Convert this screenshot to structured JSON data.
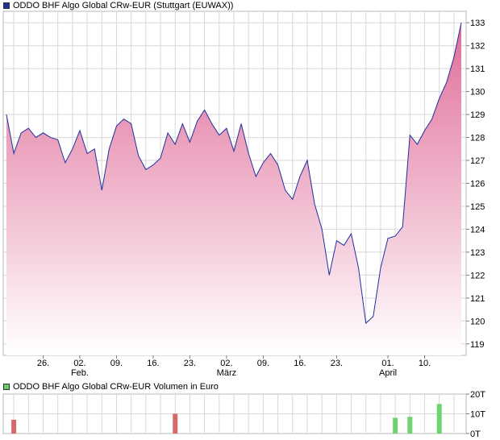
{
  "chart_data": [
    {
      "type": "area",
      "title": "ODDO BHF Algo Global CRw-EUR (Stuttgart (EUWAX))",
      "colors": {
        "line": "#1f2f9f",
        "fill_top": "#e06d99",
        "fill_bottom": "#ffffff",
        "legend": "#1f2f9f",
        "grid": "#d7d7d7"
      },
      "ylim": [
        118.5,
        133.5
      ],
      "y_ticks": [
        119,
        120,
        121,
        122,
        123,
        124,
        125,
        126,
        127,
        128,
        129,
        130,
        131,
        132,
        133
      ],
      "x_ticks": [
        {
          "i": 5,
          "label": "26."
        },
        {
          "i": 10,
          "label": "02.",
          "sub": "Feb."
        },
        {
          "i": 15,
          "label": "09."
        },
        {
          "i": 20,
          "label": "16."
        },
        {
          "i": 25,
          "label": "23."
        },
        {
          "i": 30,
          "label": "02.",
          "sub": "März"
        },
        {
          "i": 35,
          "label": "09."
        },
        {
          "i": 40,
          "label": "16."
        },
        {
          "i": 45,
          "label": "23."
        },
        {
          "i": 52,
          "label": "01.",
          "sub": "April"
        },
        {
          "i": 57,
          "label": "10."
        }
      ],
      "grid": true,
      "values": [
        129.0,
        127.3,
        128.2,
        128.4,
        128.0,
        128.2,
        128.0,
        127.9,
        126.9,
        127.5,
        128.3,
        127.3,
        127.5,
        125.7,
        127.5,
        128.5,
        128.8,
        128.6,
        127.2,
        126.6,
        126.8,
        127.1,
        128.2,
        127.7,
        128.6,
        127.8,
        128.7,
        129.2,
        128.6,
        128.1,
        128.4,
        127.4,
        128.6,
        127.3,
        126.3,
        126.9,
        127.3,
        126.8,
        125.7,
        125.3,
        126.3,
        127.0,
        125.1,
        124.0,
        122.0,
        123.5,
        123.3,
        123.8,
        122.3,
        119.9,
        120.2,
        122.3,
        123.6,
        123.7,
        124.1,
        128.1,
        127.7,
        128.3,
        128.8,
        129.7,
        130.4,
        131.5,
        133.0
      ]
    },
    {
      "type": "bar",
      "title": "ODDO BHF Algo Global CRw-EUR Volumen in Euro",
      "colors": {
        "legend": "#66cc66",
        "up": "#6fd36f",
        "down": "#d46a6a"
      },
      "ylim": [
        0,
        20
      ],
      "y_ticks": [
        "0T",
        "10T",
        "20T"
      ],
      "bars": [
        {
          "i": 1,
          "value": 7,
          "dir": "down"
        },
        {
          "i": 23,
          "value": 10,
          "dir": "down"
        },
        {
          "i": 53,
          "value": 8,
          "dir": "up"
        },
        {
          "i": 55,
          "value": 8.5,
          "dir": "up"
        },
        {
          "i": 59,
          "value": 15,
          "dir": "up"
        }
      ]
    }
  ]
}
